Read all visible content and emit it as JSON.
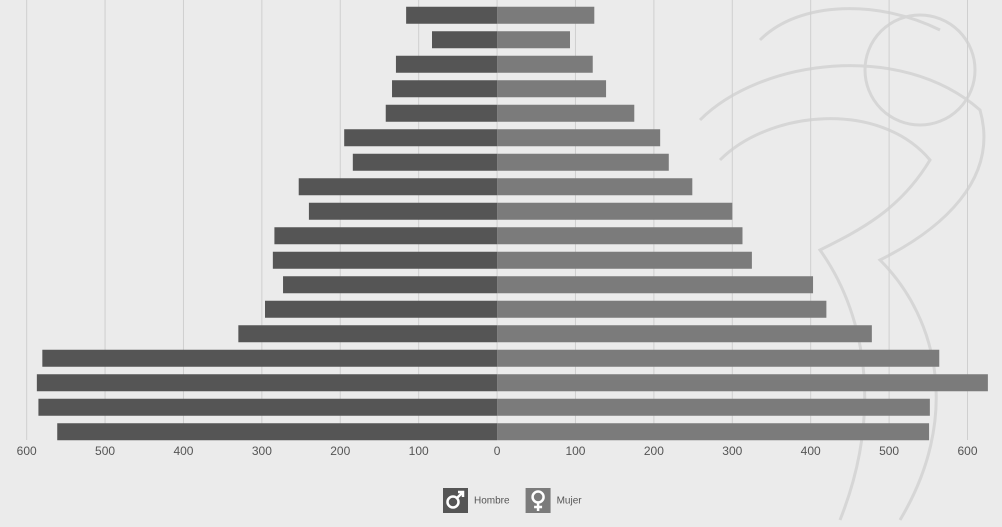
{
  "chart_data": {
    "type": "pyramid",
    "categories": [
      null,
      null,
      null,
      null,
      null,
      null,
      null,
      null,
      null,
      null,
      null,
      null,
      null,
      null,
      null,
      null,
      null,
      null
    ],
    "series": [
      {
        "name": "Hombre",
        "color": "#555555",
        "values": [
          -116,
          -83,
          -129,
          -134,
          -142,
          -195,
          -184,
          -253,
          -240,
          -284,
          -286,
          -273,
          -296,
          -330,
          -580,
          -587,
          -585,
          -561
        ]
      },
      {
        "name": "Mujer",
        "color": "#7b7b7b",
        "values": [
          124,
          93,
          122,
          139,
          175,
          208,
          219,
          249,
          300,
          313,
          325,
          403,
          420,
          478,
          564,
          626,
          552,
          551
        ]
      }
    ],
    "xlim": [
      -634,
      644
    ],
    "xticks": [
      {
        "value": -600,
        "label": "600"
      },
      {
        "value": -500,
        "label": "500"
      },
      {
        "value": -400,
        "label": "400"
      },
      {
        "value": -300,
        "label": "300"
      },
      {
        "value": -200,
        "label": "200"
      },
      {
        "value": -100,
        "label": "100"
      },
      0,
      100,
      200,
      300,
      400,
      500,
      600
    ],
    "grid": true
  }
}
